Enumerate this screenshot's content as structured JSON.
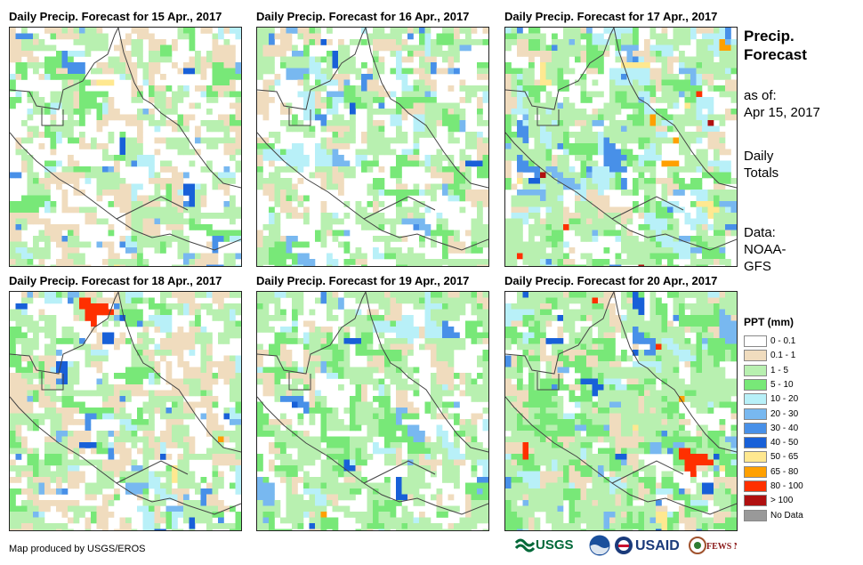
{
  "panels": [
    {
      "title": "Daily Precip. Forecast for 15 Apr., 2017"
    },
    {
      "title": "Daily Precip. Forecast for 16 Apr., 2017"
    },
    {
      "title": "Daily Precip. Forecast for 17 Apr., 2017"
    },
    {
      "title": "Daily Precip. Forecast for 18 Apr., 2017"
    },
    {
      "title": "Daily Precip. Forecast for 19 Apr., 2017"
    },
    {
      "title": "Daily Precip. Forecast for 20 Apr., 2017"
    }
  ],
  "side": {
    "title_line1": "Precip.",
    "title_line2": "Forecast",
    "asof_line1": "as of:",
    "asof_line2": "Apr 15, 2017",
    "daily_line1": "Daily",
    "daily_line2": "Totals",
    "data_line1": "Data:",
    "data_line2": "NOAA-",
    "data_line3": "GFS"
  },
  "legend": {
    "title": "PPT (mm)",
    "items": [
      {
        "label": "0 - 0.1",
        "color": "#ffffff"
      },
      {
        "label": "0.1 - 1",
        "color": "#f0dcbe"
      },
      {
        "label": "1 - 5",
        "color": "#b8f0b0"
      },
      {
        "label": "5 - 10",
        "color": "#78e878"
      },
      {
        "label": "10 - 20",
        "color": "#b8f0f8"
      },
      {
        "label": "20 - 30",
        "color": "#78b8f0"
      },
      {
        "label": "30 - 40",
        "color": "#4890e8"
      },
      {
        "label": "40 - 50",
        "color": "#1860d8"
      },
      {
        "label": "50 - 65",
        "color": "#ffe890"
      },
      {
        "label": "65 - 80",
        "color": "#ffa000"
      },
      {
        "label": "80 - 100",
        "color": "#ff3000"
      },
      {
        "label": "> 100",
        "color": "#b01010"
      },
      {
        "label": "No Data",
        "color": "#999999"
      }
    ]
  },
  "footer": {
    "credit": "Map produced by USGS/EROS"
  },
  "logos": {
    "usgs": "USGS",
    "usaid": "USAID",
    "fewsnet": "FEWS NET"
  }
}
